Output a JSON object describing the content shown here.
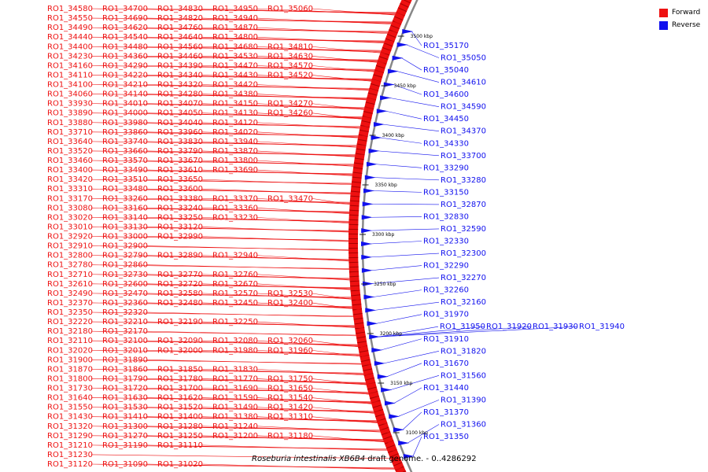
{
  "colors": {
    "forward": "#ee1111",
    "reverse": "#1111ee",
    "backbone": "#888888",
    "tick": "#222222"
  },
  "legend": [
    {
      "label": "Forward",
      "color": "#ee1111"
    },
    {
      "label": "Reverse",
      "color": "#1111ee"
    }
  ],
  "caption": {
    "organism": "Roseburia intestinalis XB6B4",
    "rest": " draft genome. - 0..4286292"
  },
  "ticks": [
    "3500 kbp",
    "3450 kbp",
    "3400 kbp",
    "3350 kbp",
    "3300 kbp",
    "3250 kbp",
    "3200 kbp",
    "3150 kbp",
    "3100 kbp"
  ],
  "forward_labels": [
    [
      "RO1_34580",
      "RO1_34700",
      "RO1_34830",
      "RO1_34950",
      "RO1_35060"
    ],
    [
      "RO1_34550",
      "RO1_34690",
      "RO1_34820",
      "RO1_34940"
    ],
    [
      "RO1_34490",
      "RO1_34620",
      "RO1_34760",
      "RO1_34870"
    ],
    [
      "RO1_34440",
      "RO1_34540",
      "RO1_34640",
      "RO1_34800"
    ],
    [
      "RO1_34400",
      "RO1_34480",
      "RO1_34560",
      "RO1_34680",
      "RO1_34810"
    ],
    [
      "RO1_34230",
      "RO1_34360",
      "RO1_34460",
      "RO1_34530",
      "RO1_34630"
    ],
    [
      "RO1_34160",
      "RO1_34290",
      "RO1_34390",
      "RO1_34470",
      "RO1_34570"
    ],
    [
      "RO1_34110",
      "RO1_34220",
      "RO1_34340",
      "RO1_34430",
      "RO1_34520"
    ],
    [
      "RO1_34100",
      "RO1_34210",
      "RO1_34320",
      "RO1_34420"
    ],
    [
      "RO1_34060",
      "RO1_34140",
      "RO1_34280",
      "RO1_34380"
    ],
    [
      "RO1_33930",
      "RO1_34010",
      "RO1_34070",
      "RO1_34150",
      "RO1_34270"
    ],
    [
      "RO1_33890",
      "RO1_34000",
      "RO1_34050",
      "RO1_34130",
      "RO1_34260"
    ],
    [
      "RO1_33880",
      "RO1_33980",
      "RO1_34040",
      "RO1_34120"
    ],
    [
      "RO1_33710",
      "RO1_33860",
      "RO1_33960",
      "RO1_34020"
    ],
    [
      "RO1_33640",
      "RO1_33740",
      "RO1_33830",
      "RO1_33940"
    ],
    [
      "RO1_33520",
      "RO1_33660",
      "RO1_33790",
      "RO1_33870"
    ],
    [
      "RO1_33460",
      "RO1_33570",
      "RO1_33670",
      "RO1_33800"
    ],
    [
      "RO1_33400",
      "RO1_33490",
      "RO1_33610",
      "RO1_33690"
    ],
    [
      "RO1_33420",
      "RO1_33510",
      "RO1_33650"
    ],
    [
      "RO1_33310",
      "RO1_33480",
      "RO1_33600"
    ],
    [
      "RO1_33170",
      "RO1_33260",
      "RO1_33380",
      "RO1_33370",
      "RO1_33470"
    ],
    [
      "RO1_33080",
      "RO1_33160",
      "RO1_33240",
      "RO1_33360"
    ],
    [
      "RO1_33020",
      "RO1_33140",
      "RO1_33250",
      "RO1_33230"
    ],
    [
      "RO1_33010",
      "RO1_33130",
      "RO1_33120"
    ],
    [
      "RO1_32920",
      "RO1_33000",
      "RO1_32990"
    ],
    [
      "RO1_32910",
      "RO1_32900"
    ],
    [
      "RO1_32800",
      "RO1_32790",
      "RO1_32890",
      "RO1_32940"
    ],
    [
      "RO1_32780",
      "RO1_32860"
    ],
    [
      "RO1_32710",
      "RO1_32730",
      "RO1_32770",
      "RO1_32760"
    ],
    [
      "RO1_32610",
      "RO1_32600",
      "RO1_32720",
      "RO1_32670"
    ],
    [
      "RO1_32490",
      "RO1_32470",
      "RO1_32580",
      "RO1_32570",
      "RO1_32530"
    ],
    [
      "RO1_32370",
      "RO1_32360",
      "RO1_32480",
      "RO1_32450",
      "RO1_32400"
    ],
    [
      "RO1_32350",
      "RO1_32320"
    ],
    [
      "RO1_32220",
      "RO1_32210",
      "RO1_32190",
      "RO1_32250"
    ],
    [
      "RO1_32180",
      "RO1_32170"
    ],
    [
      "RO1_32110",
      "RO1_32100",
      "RO1_32090",
      "RO1_32080",
      "RO1_32060"
    ],
    [
      "RO1_32020",
      "RO1_32010",
      "RO1_32000",
      "RO1_31980",
      "RO1_31960"
    ],
    [
      "RO1_31900",
      "RO1_31890"
    ],
    [
      "RO1_31870",
      "RO1_31860",
      "RO1_31850",
      "RO1_31830"
    ],
    [
      "RO1_31800",
      "RO1_31790",
      "RO1_31780",
      "RO1_31770",
      "RO1_31750"
    ],
    [
      "RO1_31730",
      "RO1_31720",
      "RO1_31700",
      "RO1_31690",
      "RO1_31650"
    ],
    [
      "RO1_31640",
      "RO1_31630",
      "RO1_31620",
      "RO1_31590",
      "RO1_31540"
    ],
    [
      "RO1_31550",
      "RO1_31530",
      "RO1_31520",
      "RO1_31490",
      "RO1_31420"
    ],
    [
      "RO1_31430",
      "RO1_31410",
      "RO1_31400",
      "RO1_31380",
      "RO1_31310"
    ],
    [
      "RO1_31320",
      "RO1_31300",
      "RO1_31280",
      "RO1_31240"
    ],
    [
      "RO1_31290",
      "RO1_31270",
      "RO1_31250",
      "RO1_31200",
      "RO1_31180"
    ],
    [
      "RO1_31210",
      "RO1_31190",
      "RO1_31110"
    ],
    [
      "RO1_31230"
    ],
    [
      "RO1_31120",
      "RO1_31090",
      "RO1_31020"
    ]
  ],
  "reverse_labels": [
    [
      "RO1_35170"
    ],
    [
      "RO1_35050"
    ],
    [
      "RO1_35040"
    ],
    [
      "RO1_34610"
    ],
    [
      "RO1_34600"
    ],
    [
      "RO1_34590"
    ],
    [
      "RO1_34450"
    ],
    [
      "RO1_34370"
    ],
    [
      "RO1_34330"
    ],
    [
      "RO1_33700"
    ],
    [
      "RO1_33290"
    ],
    [
      "RO1_33280"
    ],
    [
      "RO1_33150"
    ],
    [
      "RO1_32870"
    ],
    [
      "RO1_32830"
    ],
    [
      "RO1_32590"
    ],
    [
      "RO1_32330"
    ],
    [
      "RO1_32300"
    ],
    [
      "RO1_32290"
    ],
    [
      "RO1_32270"
    ],
    [
      "RO1_32260"
    ],
    [
      "RO1_32160"
    ],
    [
      "RO1_31970"
    ],
    [
      "RO1_31950",
      "RO1_31920",
      "RO1_31930",
      "RO1_31940"
    ],
    [
      "RO1_31910"
    ],
    [
      "RO1_31820"
    ],
    [
      "RO1_31670"
    ],
    [
      "RO1_31560"
    ],
    [
      "RO1_31440"
    ],
    [
      "RO1_31390"
    ],
    [
      "RO1_31370"
    ],
    [
      "RO1_31360"
    ],
    [
      "RO1_31350"
    ]
  ]
}
